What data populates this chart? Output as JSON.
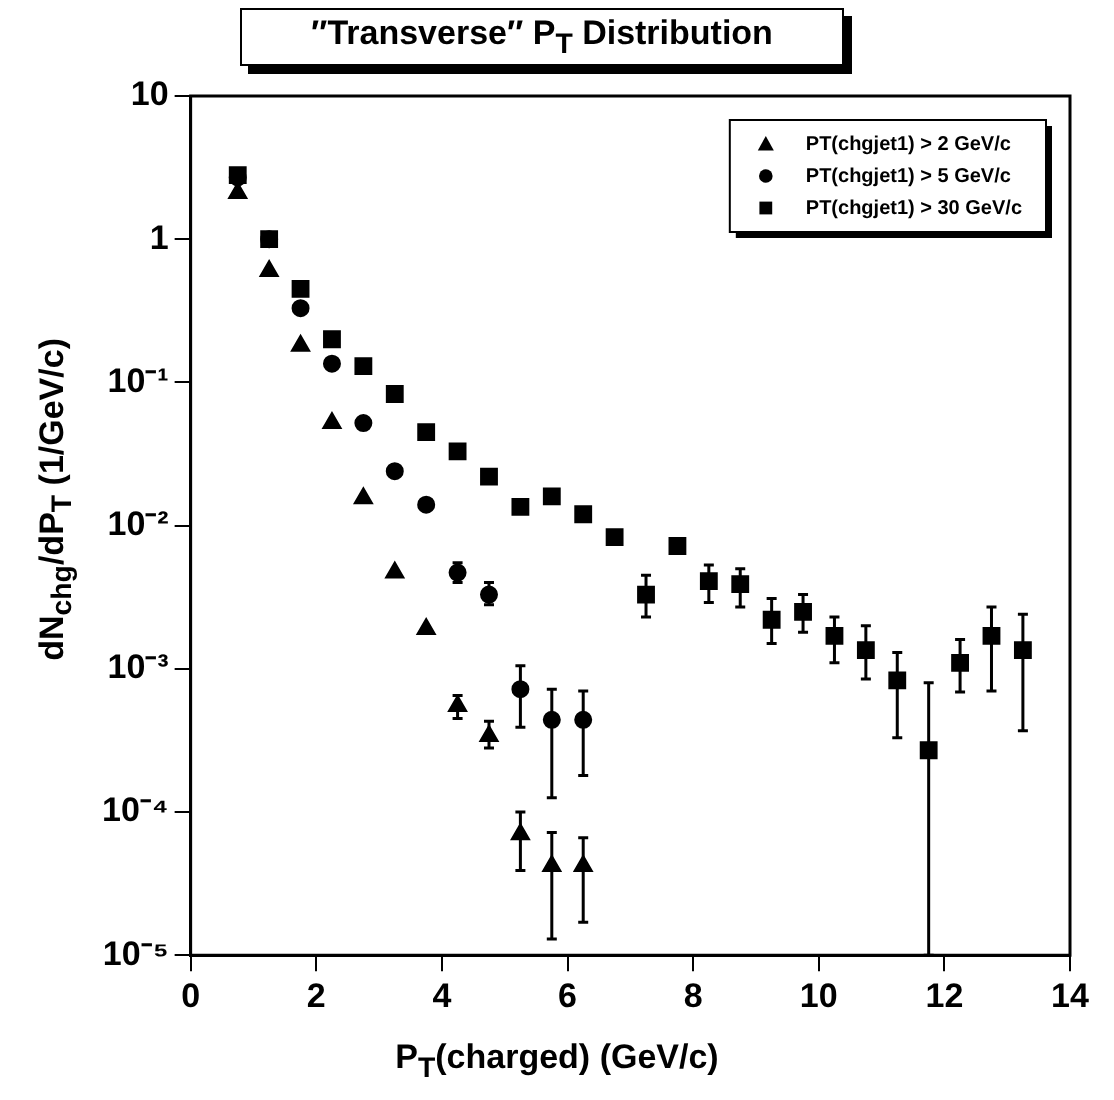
{
  "chart_data": {
    "type": "scatter",
    "title": "″Transverse″ P$_{T}$ Distribution",
    "xlabel": "P$_{T}$(charged) (GeV/c)",
    "ylabel": "dN$_{chg}$/dP$_{T}$ (1/GeV/c)",
    "log": "y",
    "grid": false,
    "legend": "top right",
    "xlim": [
      0,
      14
    ],
    "xticks": [
      0,
      2,
      4,
      6,
      8,
      10,
      12,
      14
    ],
    "ylim": [
      1e-05,
      10
    ],
    "yticks": [
      {
        "value": 1e-05,
        "label": "10⁻⁵"
      },
      {
        "value": 0.0001,
        "label": "10⁻⁴"
      },
      {
        "value": 0.001,
        "label": "10⁻³"
      },
      {
        "value": 0.01,
        "label": "10⁻²"
      },
      {
        "value": 0.1,
        "label": "10⁻¹"
      },
      1,
      10
    ],
    "series": [
      {
        "name": "PT(chgjet1) > 2 GeV/c",
        "color": "#000000",
        "marker": "triangle",
        "x": [
          0.75,
          1.25,
          1.75,
          2.25,
          2.75,
          3.25,
          3.75,
          4.25,
          4.75,
          5.25,
          5.75,
          6.25
        ],
        "values": [
          2.1,
          0.6,
          0.18,
          0.052,
          0.0155,
          0.0047,
          0.0019,
          0.00055,
          0.00034,
          7e-05,
          4.2e-05,
          4.2e-05
        ],
        "errors": [
          null,
          null,
          null,
          null,
          null,
          null,
          null,
          [
            0.00045,
            0.00065
          ],
          [
            0.00028,
            0.00043
          ],
          [
            3.9e-05,
            0.0001
          ],
          [
            1.3e-05,
            7.2e-05
          ],
          [
            1.7e-05,
            6.6e-05
          ]
        ]
      },
      {
        "name": "PT(chgjet1) > 5 GeV/c",
        "color": "#000000",
        "marker": "circle",
        "x": [
          0.75,
          1.25,
          1.75,
          2.25,
          2.75,
          3.25,
          3.75,
          4.25,
          4.75,
          5.25,
          5.75,
          6.25
        ],
        "values": [
          2.7,
          1.0,
          0.33,
          0.135,
          0.052,
          0.024,
          0.014,
          0.0047,
          0.0033,
          0.00072,
          0.00044,
          0.00044
        ],
        "errors": [
          null,
          null,
          null,
          null,
          null,
          null,
          null,
          [
            0.004,
            0.0055
          ],
          [
            0.0028,
            0.004
          ],
          [
            0.00039,
            0.00105
          ],
          [
            0.000126,
            0.00072
          ],
          [
            0.00018,
            0.0007
          ]
        ]
      },
      {
        "name": "PT(chgjet1) > 30 GeV/c",
        "color": "#000000",
        "marker": "square",
        "x": [
          0.75,
          1.25,
          1.75,
          2.25,
          2.75,
          3.25,
          3.75,
          4.25,
          4.75,
          5.25,
          5.75,
          6.25,
          6.75,
          7.25,
          7.75,
          8.25,
          8.75,
          9.25,
          9.75,
          10.25,
          10.75,
          11.25,
          11.75,
          12.25,
          12.75,
          13.25
        ],
        "values": [
          2.8,
          1.0,
          0.45,
          0.2,
          0.13,
          0.083,
          0.045,
          0.033,
          0.022,
          0.0135,
          0.016,
          0.012,
          0.0083,
          0.0033,
          0.0072,
          0.0041,
          0.0039,
          0.0022,
          0.0025,
          0.0017,
          0.00135,
          0.00083,
          0.00027,
          0.0011,
          0.0017,
          0.00135
        ],
        "errors": [
          null,
          null,
          null,
          null,
          null,
          null,
          null,
          null,
          null,
          null,
          null,
          null,
          null,
          [
            0.0023,
            0.0045
          ],
          null,
          [
            0.0029,
            0.0053
          ],
          [
            0.0027,
            0.005
          ],
          [
            0.0015,
            0.0031
          ],
          [
            0.0018,
            0.0033
          ],
          [
            0.0011,
            0.0023
          ],
          [
            0.00085,
            0.002
          ],
          [
            0.00033,
            0.0013
          ],
          [
            1e-05,
            0.0008
          ],
          [
            0.00069,
            0.0016
          ],
          [
            0.0007,
            0.0027
          ],
          [
            0.00037,
            0.0024
          ]
        ]
      }
    ]
  }
}
